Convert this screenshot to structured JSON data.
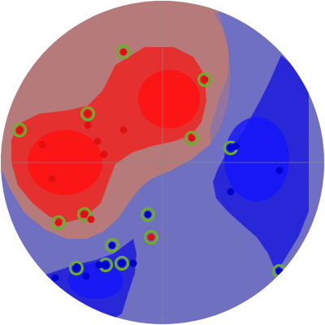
{
  "chart_data": {
    "type": "scatter",
    "title": "",
    "xlabel": "",
    "ylabel": "",
    "xlim": [
      -1,
      1
    ],
    "ylim": [
      -1,
      1
    ],
    "grid": false,
    "legend": "none",
    "plot_shape": "circle",
    "colors": {
      "red_class": "#e01010",
      "blue_class": "#0000cc",
      "highlight_ring": "#6cae2c",
      "red_region_core": "#ff1010",
      "red_region_edge": "#e53030",
      "red_halo": "#b67a7a",
      "blue_region_core": "#1414ff",
      "blue_region_edge": "#2828d8",
      "blue_halo": "#7070c0",
      "axis_line": "#8a8a8a"
    },
    "series": [
      {
        "class": "red",
        "points": [
          {
            "x": -0.24,
            "y": 0.68,
            "highlight": true
          },
          {
            "x": 0.26,
            "y": 0.51,
            "highlight": true
          },
          {
            "x": -0.46,
            "y": 0.3,
            "highlight": true
          },
          {
            "x": -0.46,
            "y": 0.23,
            "highlight": false
          },
          {
            "x": -0.24,
            "y": 0.2,
            "highlight": false
          },
          {
            "x": -0.88,
            "y": 0.2,
            "highlight": true
          },
          {
            "x": -0.74,
            "y": 0.11,
            "highlight": false
          },
          {
            "x": -0.4,
            "y": 0.13,
            "highlight": false
          },
          {
            "x": -0.36,
            "y": 0.05,
            "highlight": false
          },
          {
            "x": 0.18,
            "y": 0.15,
            "highlight": true
          },
          {
            "x": -0.68,
            "y": -0.1,
            "highlight": false
          },
          {
            "x": -0.48,
            "y": -0.32,
            "highlight": true
          },
          {
            "x": -0.44,
            "y": -0.35,
            "highlight": false
          },
          {
            "x": -0.64,
            "y": -0.37,
            "highlight": true
          },
          {
            "x": -0.07,
            "y": -0.46,
            "highlight": true
          }
        ]
      },
      {
        "class": "blue",
        "points": [
          {
            "x": 0.42,
            "y": 0.09,
            "highlight": true
          },
          {
            "x": 0.45,
            "y": 0.1,
            "highlight": false
          },
          {
            "x": 0.72,
            "y": -0.05,
            "highlight": false
          },
          {
            "x": 0.42,
            "y": -0.18,
            "highlight": false
          },
          {
            "x": -0.09,
            "y": -0.32,
            "highlight": true
          },
          {
            "x": -0.31,
            "y": -0.51,
            "highlight": true
          },
          {
            "x": -0.18,
            "y": -0.62,
            "highlight": false
          },
          {
            "x": -0.35,
            "y": -0.63,
            "highlight": true
          },
          {
            "x": -0.25,
            "y": -0.62,
            "highlight": true
          },
          {
            "x": -0.39,
            "y": -0.63,
            "highlight": false
          },
          {
            "x": -0.52,
            "y": -0.63,
            "highlight": false
          },
          {
            "x": -0.53,
            "y": -0.65,
            "highlight": true
          },
          {
            "x": -0.47,
            "y": -0.7,
            "highlight": false
          },
          {
            "x": -0.66,
            "y": -0.71,
            "highlight": false
          },
          {
            "x": 0.72,
            "y": -0.67,
            "highlight": true
          }
        ]
      }
    ]
  }
}
